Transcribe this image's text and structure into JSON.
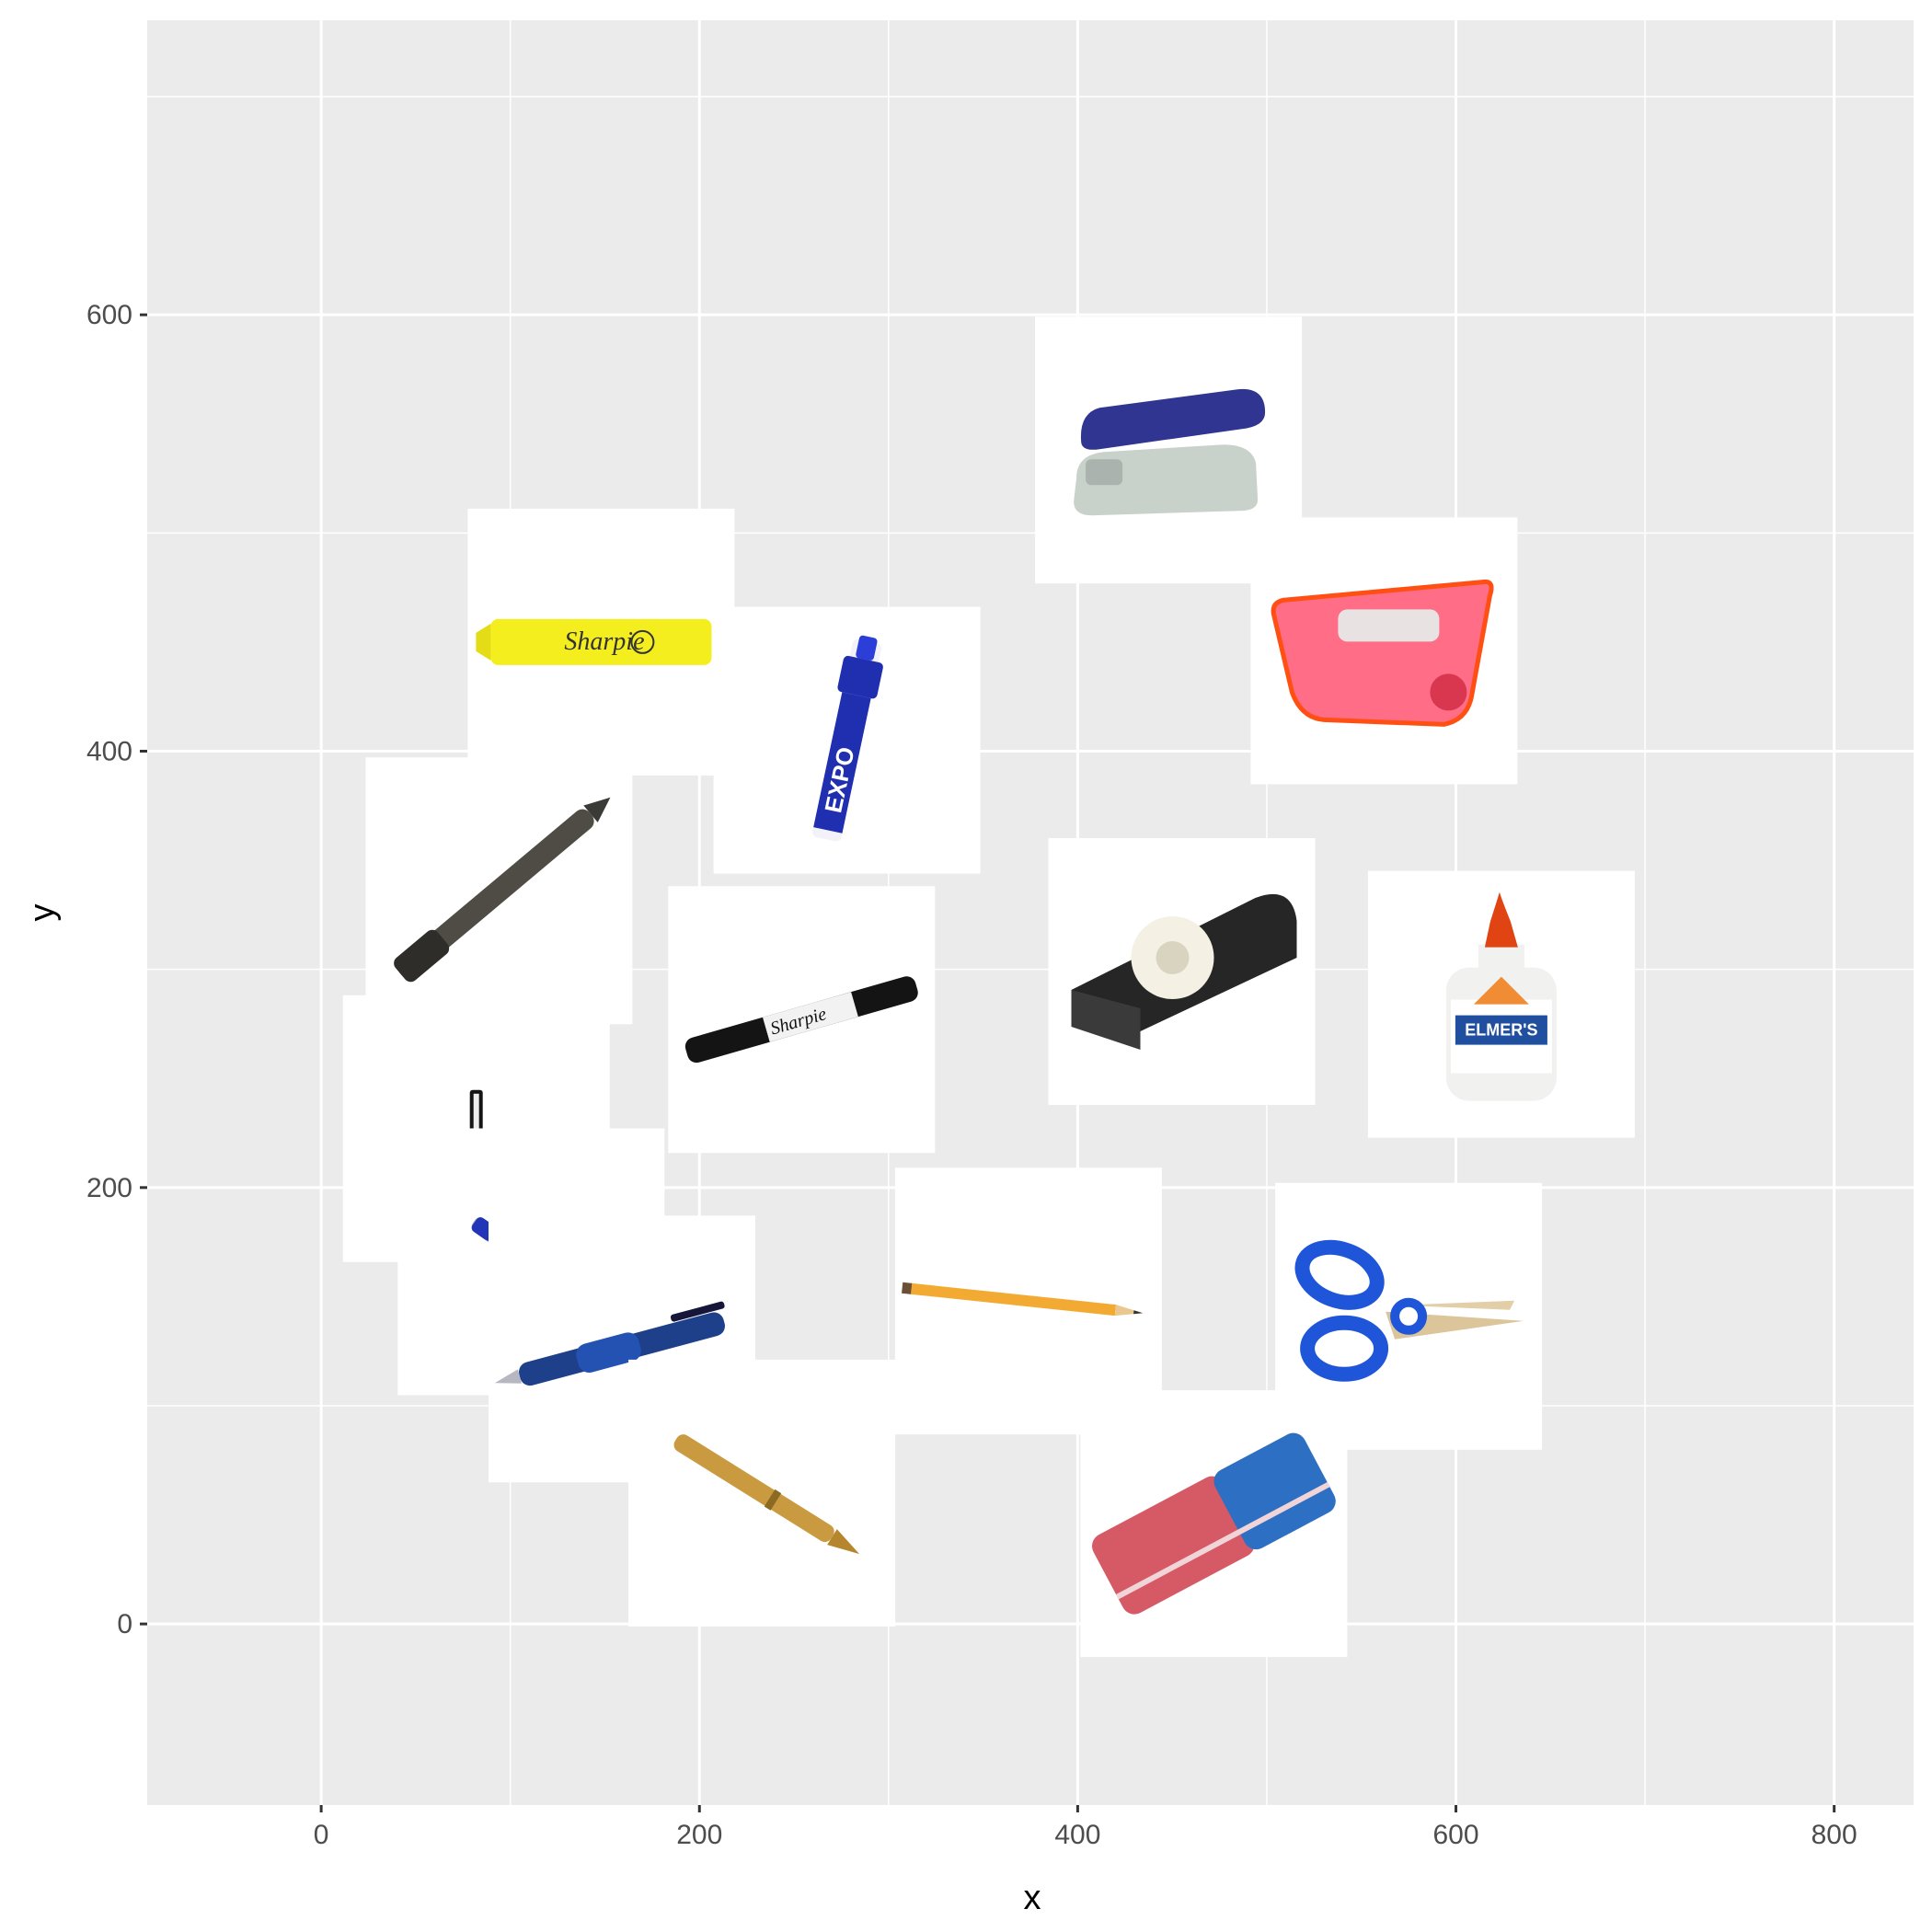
{
  "chart_data": {
    "type": "scatter",
    "title": "",
    "xlabel": "x",
    "ylabel": "y",
    "xlim": [
      -92,
      842
    ],
    "ylim": [
      -83,
      735
    ],
    "x_ticks": [
      0,
      200,
      400,
      600,
      800
    ],
    "y_ticks": [
      0,
      200,
      400,
      600
    ],
    "grid": true,
    "background": "#ebebeb",
    "gridline_color": "#ffffff",
    "points": [
      {
        "name": "stapler-icon",
        "x": 448,
        "y": 538
      },
      {
        "name": "highlighter-icon",
        "x": 148,
        "y": 450
      },
      {
        "name": "dry-erase-marker-icon",
        "x": 278,
        "y": 405
      },
      {
        "name": "pencil-sharpener-icon",
        "x": 562,
        "y": 446
      },
      {
        "name": "black-pen-icon",
        "x": 94,
        "y": 336
      },
      {
        "name": "permanent-marker-icon",
        "x": 254,
        "y": 277
      },
      {
        "name": "tape-dispenser-icon",
        "x": 455,
        "y": 299
      },
      {
        "name": "glue-bottle-icon",
        "x": 624,
        "y": 284
      },
      {
        "name": "pen-cap-icon",
        "x": 82,
        "y": 227
      },
      {
        "name": "clear-ballpoint-pen-icon",
        "x": 111,
        "y": 166
      },
      {
        "name": "blue-click-pen-icon",
        "x": 159,
        "y": 126
      },
      {
        "name": "wooden-pencil-icon",
        "x": 374,
        "y": 148
      },
      {
        "name": "scissors-icon",
        "x": 575,
        "y": 141
      },
      {
        "name": "gold-pen-icon",
        "x": 233,
        "y": 60
      },
      {
        "name": "eraser-icon",
        "x": 472,
        "y": 46
      }
    ]
  }
}
